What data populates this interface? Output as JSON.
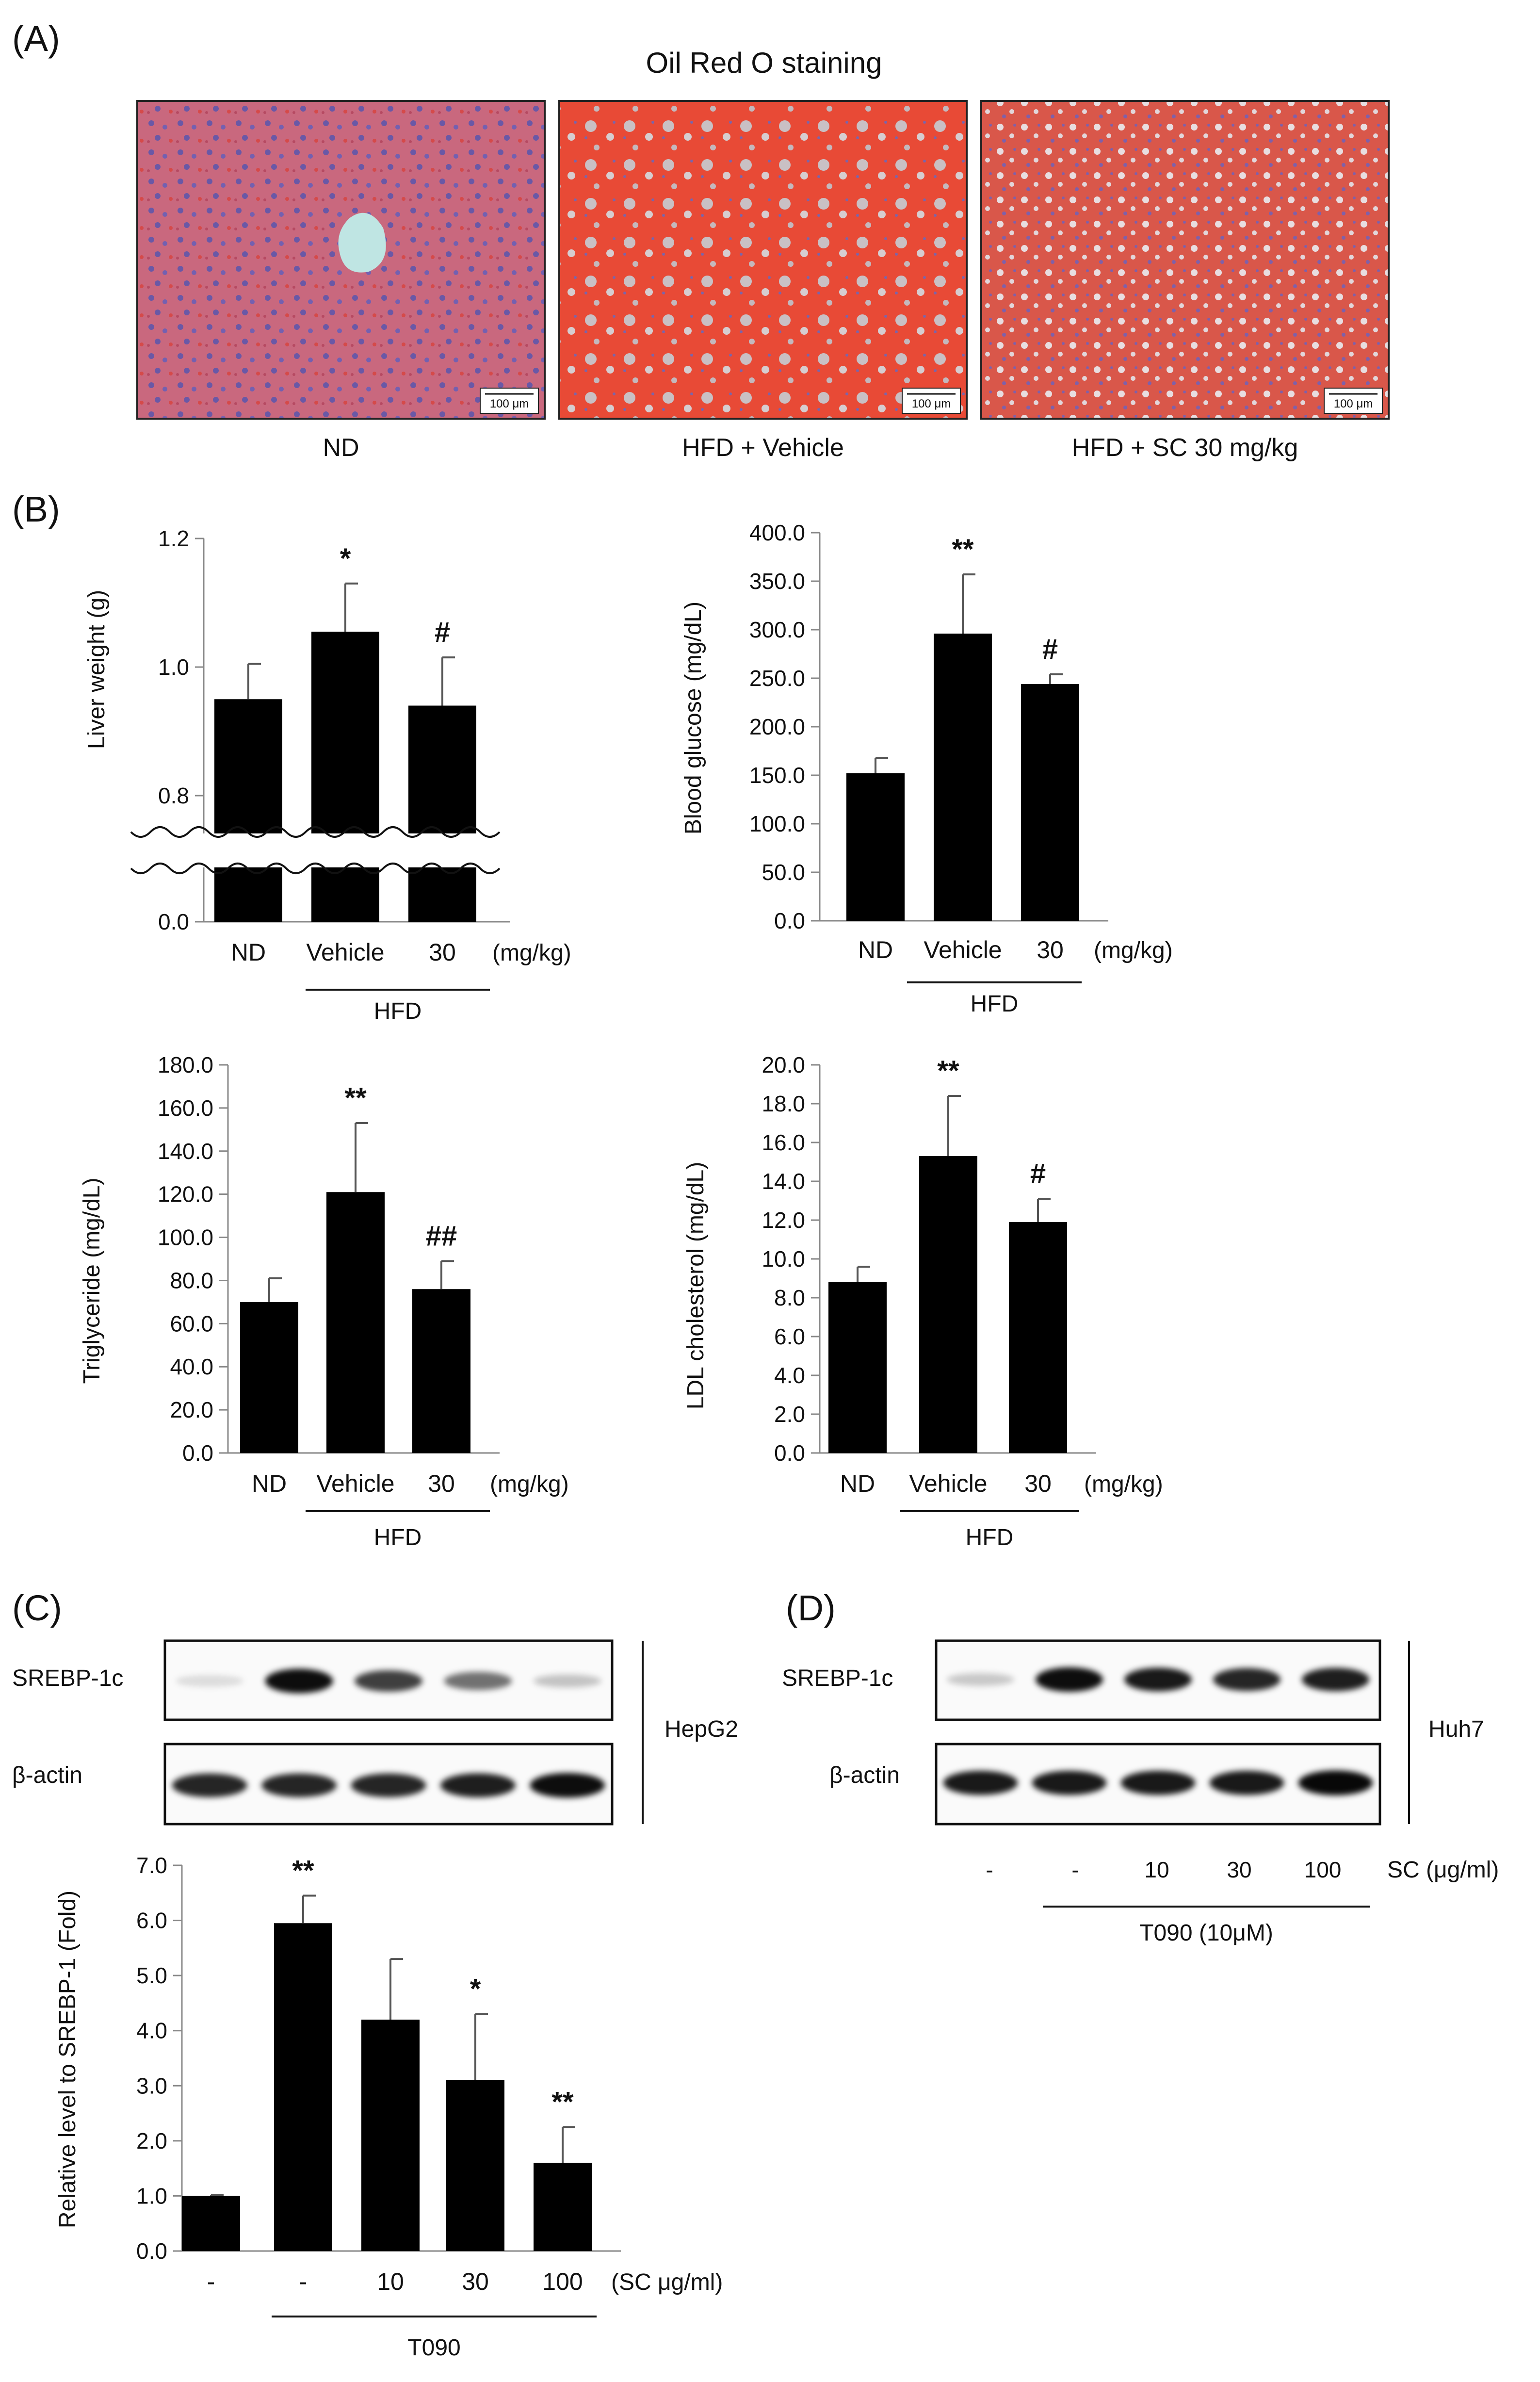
{
  "panels": {
    "a": "(A)",
    "b": "(B)",
    "c": "(C)",
    "d": "(D)"
  },
  "staining": {
    "title": "Oil Red O staining",
    "images": [
      {
        "caption": "ND",
        "scale_bar": "100 μm"
      },
      {
        "caption": "HFD + Vehicle",
        "scale_bar": "100 μm"
      },
      {
        "caption": "HFD + SC 30 mg/kg",
        "scale_bar": "100 μm"
      }
    ]
  },
  "chart_data": [
    {
      "type": "bar",
      "ylabel": "Liver weight (g)",
      "categories": [
        "ND",
        "Vehicle",
        "30"
      ],
      "values": [
        0.95,
        1.055,
        0.94
      ],
      "errors": [
        0.055,
        0.075,
        0.075
      ],
      "significance": [
        "",
        "*",
        "#"
      ],
      "yticks": [
        "0.0",
        "0.8",
        "1.0",
        "1.2"
      ],
      "axis_break": true,
      "ylim": [
        0.8,
        1.2
      ],
      "unit_label": "(mg/kg)",
      "group_label": "HFD"
    },
    {
      "type": "bar",
      "ylabel": "Blood glucose (mg/dL)",
      "categories": [
        "ND",
        "Vehicle",
        "30"
      ],
      "values": [
        152,
        296,
        244
      ],
      "errors": [
        16,
        61,
        10
      ],
      "significance": [
        "",
        "**",
        "#"
      ],
      "yticks": [
        "0.0",
        "50.0",
        "100.0",
        "150.0",
        "200.0",
        "250.0",
        "300.0",
        "350.0",
        "400.0"
      ],
      "ylim": [
        0,
        400
      ],
      "unit_label": "(mg/kg)",
      "group_label": "HFD"
    },
    {
      "type": "bar",
      "ylabel": "Triglyceride (mg/dL)",
      "categories": [
        "ND",
        "Vehicle",
        "30"
      ],
      "values": [
        70,
        121,
        76
      ],
      "errors": [
        11,
        32,
        13
      ],
      "significance": [
        "",
        "**",
        "##"
      ],
      "yticks": [
        "0.0",
        "20.0",
        "40.0",
        "60.0",
        "80.0",
        "100.0",
        "120.0",
        "140.0",
        "160.0",
        "180.0"
      ],
      "ylim": [
        0,
        180
      ],
      "unit_label": "(mg/kg)",
      "group_label": "HFD"
    },
    {
      "type": "bar",
      "ylabel": "LDL cholesterol (mg/dL)",
      "categories": [
        "ND",
        "Vehicle",
        "30"
      ],
      "values": [
        8.8,
        15.3,
        11.9
      ],
      "errors": [
        0.8,
        3.1,
        1.2
      ],
      "significance": [
        "",
        "**",
        "#"
      ],
      "yticks": [
        "0.0",
        "2.0",
        "4.0",
        "6.0",
        "8.0",
        "10.0",
        "12.0",
        "14.0",
        "16.0",
        "18.0",
        "20.0"
      ],
      "ylim": [
        0,
        20
      ],
      "unit_label": "(mg/kg)",
      "group_label": "HFD"
    },
    {
      "type": "bar",
      "ylabel": "Relative level to SREBP-1 (Fold)",
      "categories": [
        "-",
        "-",
        "10",
        "30",
        "100"
      ],
      "values": [
        1.0,
        5.95,
        4.2,
        3.1,
        1.6
      ],
      "errors": [
        0.02,
        0.5,
        1.1,
        1.2,
        0.65
      ],
      "significance": [
        "",
        "**",
        "",
        "*",
        "**"
      ],
      "yticks": [
        "0.0",
        "1.0",
        "2.0",
        "3.0",
        "4.0",
        "5.0",
        "6.0",
        "7.0"
      ],
      "ylim": [
        0,
        7
      ],
      "unit_label": "(SC μg/ml)",
      "group_label": "T090"
    }
  ],
  "blot_c": {
    "rows": [
      "SREBP-1c",
      "β-actin"
    ],
    "cell_line": "HepG2",
    "srebp_intensity": [
      0.12,
      0.95,
      0.75,
      0.55,
      0.22
    ],
    "actin_intensity": [
      0.85,
      0.85,
      0.85,
      0.88,
      0.95
    ]
  },
  "blot_d": {
    "rows": [
      "SREBP-1c",
      "β-actin"
    ],
    "cell_line": "Huh7",
    "lanes": [
      "-",
      "-",
      "10",
      "30",
      "100"
    ],
    "sc_label": "SC (μg/ml)",
    "group_label": "T090 (10μM)",
    "srebp_intensity": [
      0.2,
      0.95,
      0.9,
      0.85,
      0.88
    ],
    "actin_intensity": [
      0.9,
      0.9,
      0.9,
      0.9,
      0.97
    ]
  }
}
